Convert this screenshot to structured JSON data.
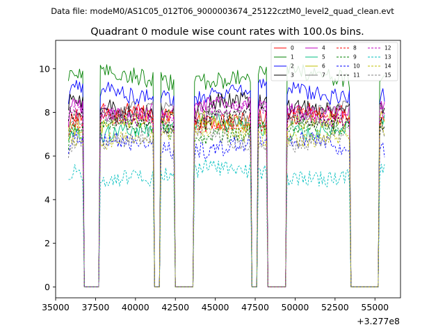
{
  "chart_data": {
    "type": "line",
    "suptitle": "Data file: modeM0/AS1C05_012T06_9000003674_25122cztM0_level2_quad_clean.evt",
    "title": "Quadrant 0 module wise count rates with 100.0s bins.",
    "xlabel": "",
    "ylabel": "",
    "x_offset_label": "+3.277e8",
    "xlim": [
      35000,
      56600
    ],
    "ylim": [
      -0.5,
      11.3
    ],
    "xticks": [
      35000,
      37500,
      40000,
      42500,
      45000,
      47500,
      50000,
      52500,
      55000
    ],
    "xtick_labels": [
      "35000",
      "37500",
      "40000",
      "42500",
      "45000",
      "47500",
      "50000",
      "52500",
      "55000"
    ],
    "yticks": [
      0,
      2,
      4,
      6,
      8,
      10
    ],
    "ytick_labels": [
      "0",
      "2",
      "4",
      "6",
      "8",
      "10"
    ],
    "grid": false,
    "legend_position": "top-right",
    "time_range": [
      35800,
      55600
    ],
    "bin_seconds": 100,
    "active_intervals": [
      [
        35800,
        36700
      ],
      [
        37800,
        41100
      ],
      [
        41600,
        42400
      ],
      [
        43700,
        47200
      ],
      [
        47700,
        48200
      ],
      [
        49500,
        53400
      ],
      [
        55300,
        55600
      ]
    ],
    "series": [
      {
        "name": "0",
        "color": "#ff0000",
        "style": "solid",
        "level": 7.8
      },
      {
        "name": "1",
        "color": "#008000",
        "style": "solid",
        "level": 9.6
      },
      {
        "name": "2",
        "color": "#0000ff",
        "style": "solid",
        "level": 8.9
      },
      {
        "name": "3",
        "color": "#000000",
        "style": "solid",
        "level": 8.3
      },
      {
        "name": "4",
        "color": "#bf00bf",
        "style": "solid",
        "level": 8.2
      },
      {
        "name": "5",
        "color": "#00bf80",
        "style": "solid",
        "level": 7.3
      },
      {
        "name": "6",
        "color": "#bfbf00",
        "style": "solid",
        "level": 7.6
      },
      {
        "name": "7",
        "color": "#808080",
        "style": "solid",
        "level": 7.9
      },
      {
        "name": "8",
        "color": "#ff0000",
        "style": "dashed",
        "level": 7.6
      },
      {
        "name": "9",
        "color": "#008000",
        "style": "dashed",
        "level": 7.2
      },
      {
        "name": "10",
        "color": "#0000ff",
        "style": "dashed",
        "level": 6.5
      },
      {
        "name": "11",
        "color": "#000000",
        "style": "dashed",
        "level": 7.7
      },
      {
        "name": "12",
        "color": "#bf00bf",
        "style": "dashed",
        "level": 8.0
      },
      {
        "name": "13",
        "color": "#00bfbf",
        "style": "dashed",
        "level": 5.2
      },
      {
        "name": "14",
        "color": "#bfbf00",
        "style": "dashed",
        "level": 7.0
      },
      {
        "name": "15",
        "color": "#808080",
        "style": "dashed",
        "level": 6.8
      }
    ]
  }
}
